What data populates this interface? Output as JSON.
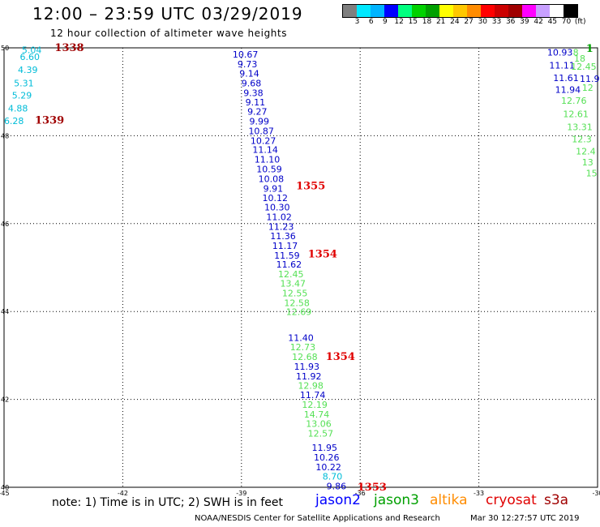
{
  "title": "12:00 – 23:59 UTC 03/29/2019",
  "subtitle": "12 hour collection of altimeter wave heights",
  "colorbar": {
    "colors": [
      "#7f7f7f",
      "#00e8ff",
      "#00b4ff",
      "#0000ff",
      "#00ff7f",
      "#00d200",
      "#00a000",
      "#ffff00",
      "#ffc800",
      "#ff8c00",
      "#ff0000",
      "#cc0000",
      "#a00000",
      "#ff00ff",
      "#c8a0ff",
      "#ffffff",
      "#000000"
    ],
    "ticks": [
      "3",
      "6",
      "9",
      "12",
      "15",
      "18",
      "21",
      "24",
      "27",
      "30",
      "33",
      "36",
      "39",
      "42",
      "45",
      "70",
      "(ft)"
    ]
  },
  "chart_data": {
    "type": "scatter",
    "title": "12:00 – 23:59 UTC 03/29/2019",
    "subtitle": "12 hour collection of altimeter wave heights",
    "xlabel": "",
    "ylabel": "",
    "xlim": [
      -45,
      -30
    ],
    "ylim": [
      40,
      50
    ],
    "x_ticks": [
      "-45",
      "-42",
      "-39",
      "-36",
      "-33",
      "-30"
    ],
    "y_ticks": [
      "40",
      "42",
      "44",
      "46",
      "48",
      "50"
    ],
    "grid": true,
    "series": [
      {
        "name": "jason2",
        "color": "#0000c8",
        "points": [
          {
            "x": -38.9,
            "y": 49.85,
            "v": "10.67"
          },
          {
            "x": -38.85,
            "y": 49.63,
            "v": "9.73"
          },
          {
            "x": -38.8,
            "y": 49.42,
            "v": "9.14"
          },
          {
            "x": -38.75,
            "y": 49.2,
            "v": "9.68"
          },
          {
            "x": -38.7,
            "y": 48.98,
            "v": "9.38"
          },
          {
            "x": -38.65,
            "y": 48.76,
            "v": "9.11"
          },
          {
            "x": -38.6,
            "y": 48.55,
            "v": "9.27"
          },
          {
            "x": -38.55,
            "y": 48.33,
            "v": "9.99"
          },
          {
            "x": -38.5,
            "y": 48.11,
            "v": "10.87"
          },
          {
            "x": -38.45,
            "y": 47.89,
            "v": "10.27"
          },
          {
            "x": -38.4,
            "y": 47.68,
            "v": "11.14"
          },
          {
            "x": -38.35,
            "y": 47.46,
            "v": "11.10"
          },
          {
            "x": -38.3,
            "y": 47.24,
            "v": "10.59"
          },
          {
            "x": -38.25,
            "y": 47.02,
            "v": "10.08"
          },
          {
            "x": -38.2,
            "y": 46.8,
            "v": "9.91"
          },
          {
            "x": -38.15,
            "y": 46.59,
            "v": "10.12"
          },
          {
            "x": -38.1,
            "y": 46.37,
            "v": "10.30"
          },
          {
            "x": -38.05,
            "y": 46.15,
            "v": "11.02"
          },
          {
            "x": -38.0,
            "y": 45.93,
            "v": "11.23"
          },
          {
            "x": -37.95,
            "y": 45.72,
            "v": "11.36"
          },
          {
            "x": -37.9,
            "y": 45.5,
            "v": "11.17"
          },
          {
            "x": -37.85,
            "y": 45.28,
            "v": "11.59"
          },
          {
            "x": -37.8,
            "y": 45.07,
            "v": "11.62"
          },
          {
            "x": -37.5,
            "y": 43.4,
            "v": "11.40"
          },
          {
            "x": -37.35,
            "y": 42.75,
            "v": "11.93"
          },
          {
            "x": -37.3,
            "y": 42.53,
            "v": "11.92"
          },
          {
            "x": -37.2,
            "y": 42.1,
            "v": "11.74"
          },
          {
            "x": -36.9,
            "y": 40.9,
            "v": "11.95"
          },
          {
            "x": -36.85,
            "y": 40.68,
            "v": "10.26"
          },
          {
            "x": -36.8,
            "y": 40.46,
            "v": "10.22"
          },
          {
            "x": -36.6,
            "y": 40.03,
            "v": "9.86"
          },
          {
            "x": -30.95,
            "y": 49.9,
            "v": "10.93"
          },
          {
            "x": -30.9,
            "y": 49.6,
            "v": "11.11"
          },
          {
            "x": -30.8,
            "y": 49.32,
            "v": "11.61"
          },
          {
            "x": -30.75,
            "y": 49.05,
            "v": "11.94"
          },
          {
            "x": -30.2,
            "y": 49.3,
            "v": "11.9"
          }
        ]
      },
      {
        "name": "jason3",
        "color": "#55e055",
        "points": [
          {
            "x": -37.75,
            "y": 44.85,
            "v": "12.45"
          },
          {
            "x": -37.7,
            "y": 44.64,
            "v": "13.47"
          },
          {
            "x": -37.65,
            "y": 44.42,
            "v": "12.55"
          },
          {
            "x": -37.6,
            "y": 44.2,
            "v": "12.58"
          },
          {
            "x": -37.55,
            "y": 43.99,
            "v": "12.69"
          },
          {
            "x": -37.45,
            "y": 43.19,
            "v": "12.73"
          },
          {
            "x": -37.4,
            "y": 42.97,
            "v": "12.68"
          },
          {
            "x": -37.25,
            "y": 42.32,
            "v": "12.98"
          },
          {
            "x": -37.15,
            "y": 41.88,
            "v": "12.19"
          },
          {
            "x": -37.1,
            "y": 41.66,
            "v": "14.74"
          },
          {
            "x": -37.05,
            "y": 41.45,
            "v": "13.06"
          },
          {
            "x": -37.0,
            "y": 41.23,
            "v": "12.57"
          },
          {
            "x": -30.55,
            "y": 49.9,
            "v": "8"
          },
          {
            "x": -30.45,
            "y": 49.76,
            "v": "18"
          },
          {
            "x": -30.35,
            "y": 49.58,
            "v": "12.45"
          },
          {
            "x": -30.25,
            "y": 49.1,
            "v": "12"
          },
          {
            "x": -30.6,
            "y": 48.8,
            "v": "12.76"
          },
          {
            "x": -30.55,
            "y": 48.5,
            "v": "12.61"
          },
          {
            "x": -30.45,
            "y": 48.2,
            "v": "13.31"
          },
          {
            "x": -30.4,
            "y": 47.92,
            "v": "12.3"
          },
          {
            "x": -30.3,
            "y": 47.65,
            "v": "12.4"
          },
          {
            "x": -30.25,
            "y": 47.4,
            "v": "13"
          },
          {
            "x": -30.15,
            "y": 47.15,
            "v": "15"
          }
        ]
      },
      {
        "name": "cryosat",
        "color": "#00bcd8",
        "points": [
          {
            "x": -44.3,
            "y": 49.95,
            "v": "5.04"
          },
          {
            "x": -44.35,
            "y": 49.8,
            "v": "6.60"
          },
          {
            "x": -44.4,
            "y": 49.5,
            "v": "4.39"
          },
          {
            "x": -44.5,
            "y": 49.2,
            "v": "5.31"
          },
          {
            "x": -44.55,
            "y": 48.92,
            "v": "5.29"
          },
          {
            "x": -44.65,
            "y": 48.63,
            "v": "4.88"
          },
          {
            "x": -44.75,
            "y": 48.34,
            "v": "6.28"
          },
          {
            "x": -36.7,
            "y": 40.25,
            "v": "8.70"
          }
        ]
      },
      {
        "name": "pass_labels",
        "points": [
          {
            "x": -43.35,
            "y": 50.0,
            "v": "1338",
            "color": "#a00000"
          },
          {
            "x": -43.85,
            "y": 48.35,
            "v": "1339",
            "color": "#a00000"
          },
          {
            "x": -37.25,
            "y": 46.85,
            "v": "1355",
            "color": "#e00000"
          },
          {
            "x": -36.95,
            "y": 45.3,
            "v": "1354",
            "color": "#e00000"
          },
          {
            "x": -36.5,
            "y": 42.97,
            "v": "1354",
            "color": "#e00000"
          },
          {
            "x": -35.7,
            "y": 40.0,
            "v": "1353",
            "color": "#e00000"
          },
          {
            "x": -30.2,
            "y": 49.98,
            "v": "1",
            "color": "#00a000"
          }
        ]
      }
    ]
  },
  "note": "note: 1) Time is in UTC; 2) SWH is in feet",
  "legend": [
    {
      "label": "jason2",
      "color": "#0000ff"
    },
    {
      "label": "jason3",
      "color": "#00a000"
    },
    {
      "label": "altika",
      "color": "#ff8c00"
    },
    {
      "label": "cryosat",
      "color": "#e00000"
    },
    {
      "label": "s3a",
      "color": "#a00000"
    }
  ],
  "credit": "NOAA/NESDIS Center for Satellite Applications and Research",
  "timestamp": "Mar 30 12:27:57 UTC 2019"
}
